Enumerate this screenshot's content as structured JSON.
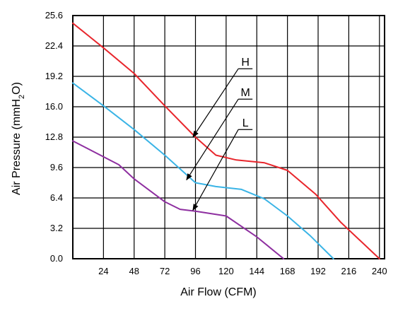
{
  "chart_data": {
    "type": "line",
    "xlabel": "Air Flow (CFM)",
    "ylabel": "Air Pressure (mmH2O)",
    "ylabel_parts": {
      "before": "Air Pressure (mmH",
      "sub": "2",
      "after": "O)"
    },
    "xlim": [
      0,
      244
    ],
    "ylim": [
      0,
      25.6
    ],
    "x_ticks": [
      "24",
      "48",
      "72",
      "96",
      "120",
      "144",
      "168",
      "192",
      "216",
      "240"
    ],
    "y_ticks": [
      "0.0",
      "3.2",
      "6.4",
      "9.6",
      "12.8",
      "16.0",
      "19.2",
      "22.4",
      "25.6"
    ],
    "grid": true,
    "colors": {
      "H": "#e8262c",
      "M": "#3ab4e6",
      "L": "#8e2fa0",
      "grid": "#000000"
    },
    "series": [
      {
        "name": "H",
        "x": [
          0,
          24,
          48,
          72,
          96,
          112,
          128,
          150,
          168,
          190,
          210,
          240
        ],
        "y": [
          24.8,
          22.2,
          19.5,
          16.1,
          12.8,
          10.9,
          10.4,
          10.1,
          9.3,
          6.8,
          3.8,
          0
        ]
      },
      {
        "name": "M",
        "x": [
          0,
          24,
          48,
          72,
          96,
          112,
          132,
          150,
          168,
          186,
          204
        ],
        "y": [
          18.5,
          16.1,
          13.6,
          10.9,
          8.0,
          7.6,
          7.3,
          6.3,
          4.5,
          2.4,
          0
        ]
      },
      {
        "name": "L",
        "x": [
          0,
          36,
          48,
          72,
          84,
          96,
          120,
          144,
          165
        ],
        "y": [
          12.4,
          9.9,
          8.4,
          6.0,
          5.2,
          5.0,
          4.5,
          2.3,
          0
        ]
      }
    ],
    "annotations": [
      {
        "series": "H",
        "label": "H",
        "label_x": 134,
        "label_y": 20.3,
        "arrow_from_x": 130,
        "arrow_from_y": 19.7,
        "arrow_to_x": 94,
        "arrow_to_y": 12.8
      },
      {
        "series": "M",
        "label": "M",
        "label_x": 134,
        "label_y": 17.1,
        "arrow_from_x": 130,
        "arrow_from_y": 16.5,
        "arrow_to_x": 89,
        "arrow_to_y": 8.3
      },
      {
        "series": "L",
        "label": "L",
        "label_x": 134,
        "label_y": 13.9,
        "arrow_from_x": 130,
        "arrow_from_y": 13.3,
        "arrow_to_x": 94,
        "arrow_to_y": 5.1
      }
    ]
  }
}
